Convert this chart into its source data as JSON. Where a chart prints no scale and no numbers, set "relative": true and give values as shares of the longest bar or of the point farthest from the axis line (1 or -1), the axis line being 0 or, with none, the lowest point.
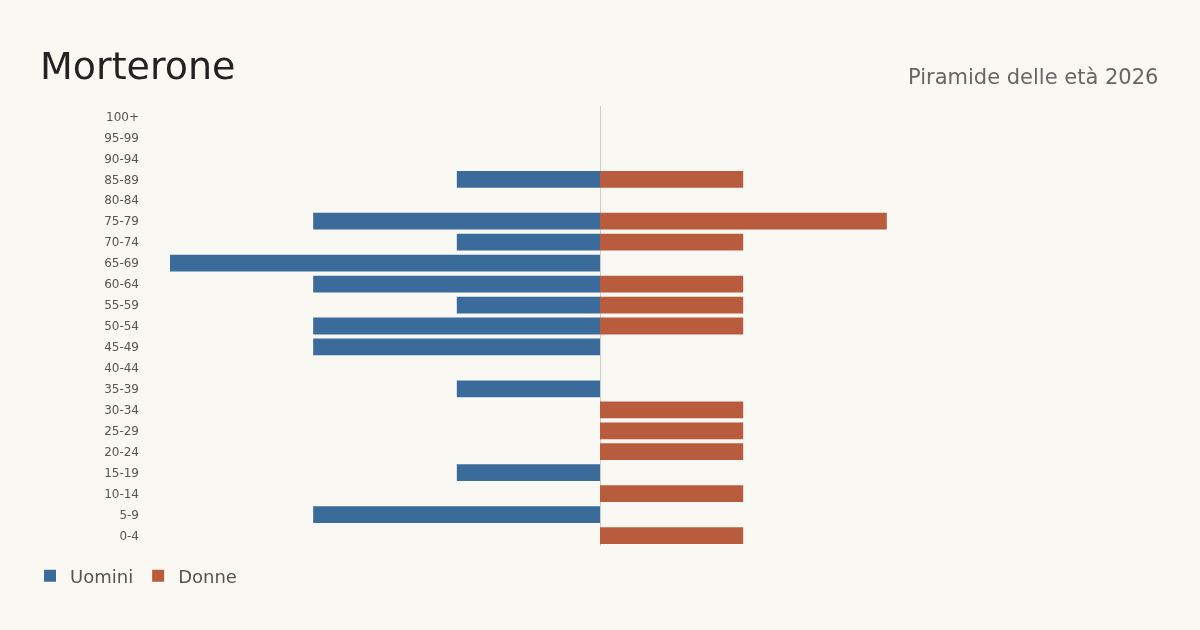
{
  "chart_data": {
    "type": "bar",
    "orientation": "horizontal",
    "relative": true,
    "title": "Morterone",
    "subtitle": "Piramide delle età 2026",
    "categories": [
      "100+",
      "95-99",
      "90-94",
      "85-89",
      "80-84",
      "75-79",
      "70-74",
      "65-69",
      "60-64",
      "55-59",
      "50-54",
      "45-49",
      "40-44",
      "35-39",
      "30-34",
      "25-29",
      "20-24",
      "15-19",
      "10-14",
      "5-9",
      "0-4"
    ],
    "series": [
      {
        "name": "Uomini",
        "color": "#3b6b9b",
        "values": [
          0,
          0,
          0,
          -0.333,
          0,
          -0.667,
          -0.333,
          -1,
          -0.667,
          -0.333,
          -0.667,
          -0.667,
          0,
          -0.333,
          0,
          0,
          0,
          -0.333,
          0,
          -0.667,
          0
        ]
      },
      {
        "name": "Donne",
        "color": "#b95c3e",
        "values": [
          0,
          0,
          0,
          0.333,
          0,
          0.667,
          0.333,
          0,
          0.333,
          0.333,
          0.333,
          0,
          0,
          0,
          0.333,
          0.333,
          0.333,
          0,
          0.333,
          0,
          0.333
        ]
      }
    ],
    "legend": "bottom left"
  }
}
